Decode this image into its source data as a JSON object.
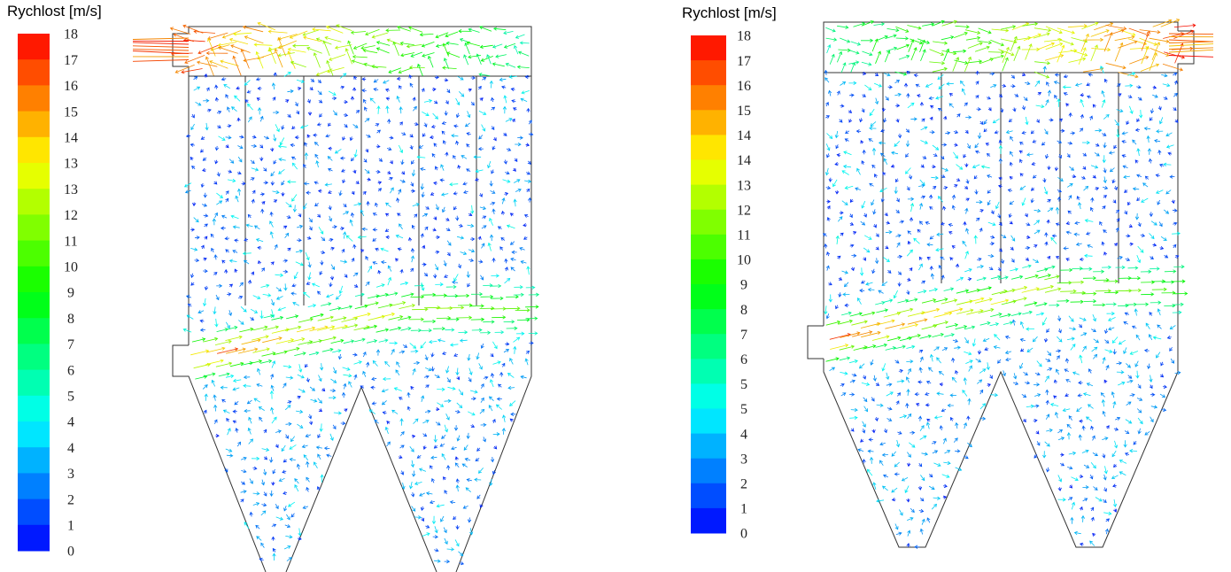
{
  "panels": [
    {
      "legend": {
        "title": "Rychlost [m/s]",
        "labels": [
          "18",
          "17",
          "16",
          "15",
          "14",
          "13",
          "13",
          "12",
          "11",
          "10",
          "9",
          "8",
          "7",
          "6",
          "5",
          "4",
          "4",
          "3",
          "2",
          "1",
          "0"
        ]
      }
    },
    {
      "legend": {
        "title": "Rychlost [m/s]",
        "labels": [
          "18",
          "17",
          "16",
          "15",
          "14",
          "14",
          "13",
          "12",
          "11",
          "10",
          "9",
          "8",
          "7",
          "6",
          "5",
          "5",
          "4",
          "3",
          "2",
          "1",
          "0"
        ]
      }
    }
  ]
}
